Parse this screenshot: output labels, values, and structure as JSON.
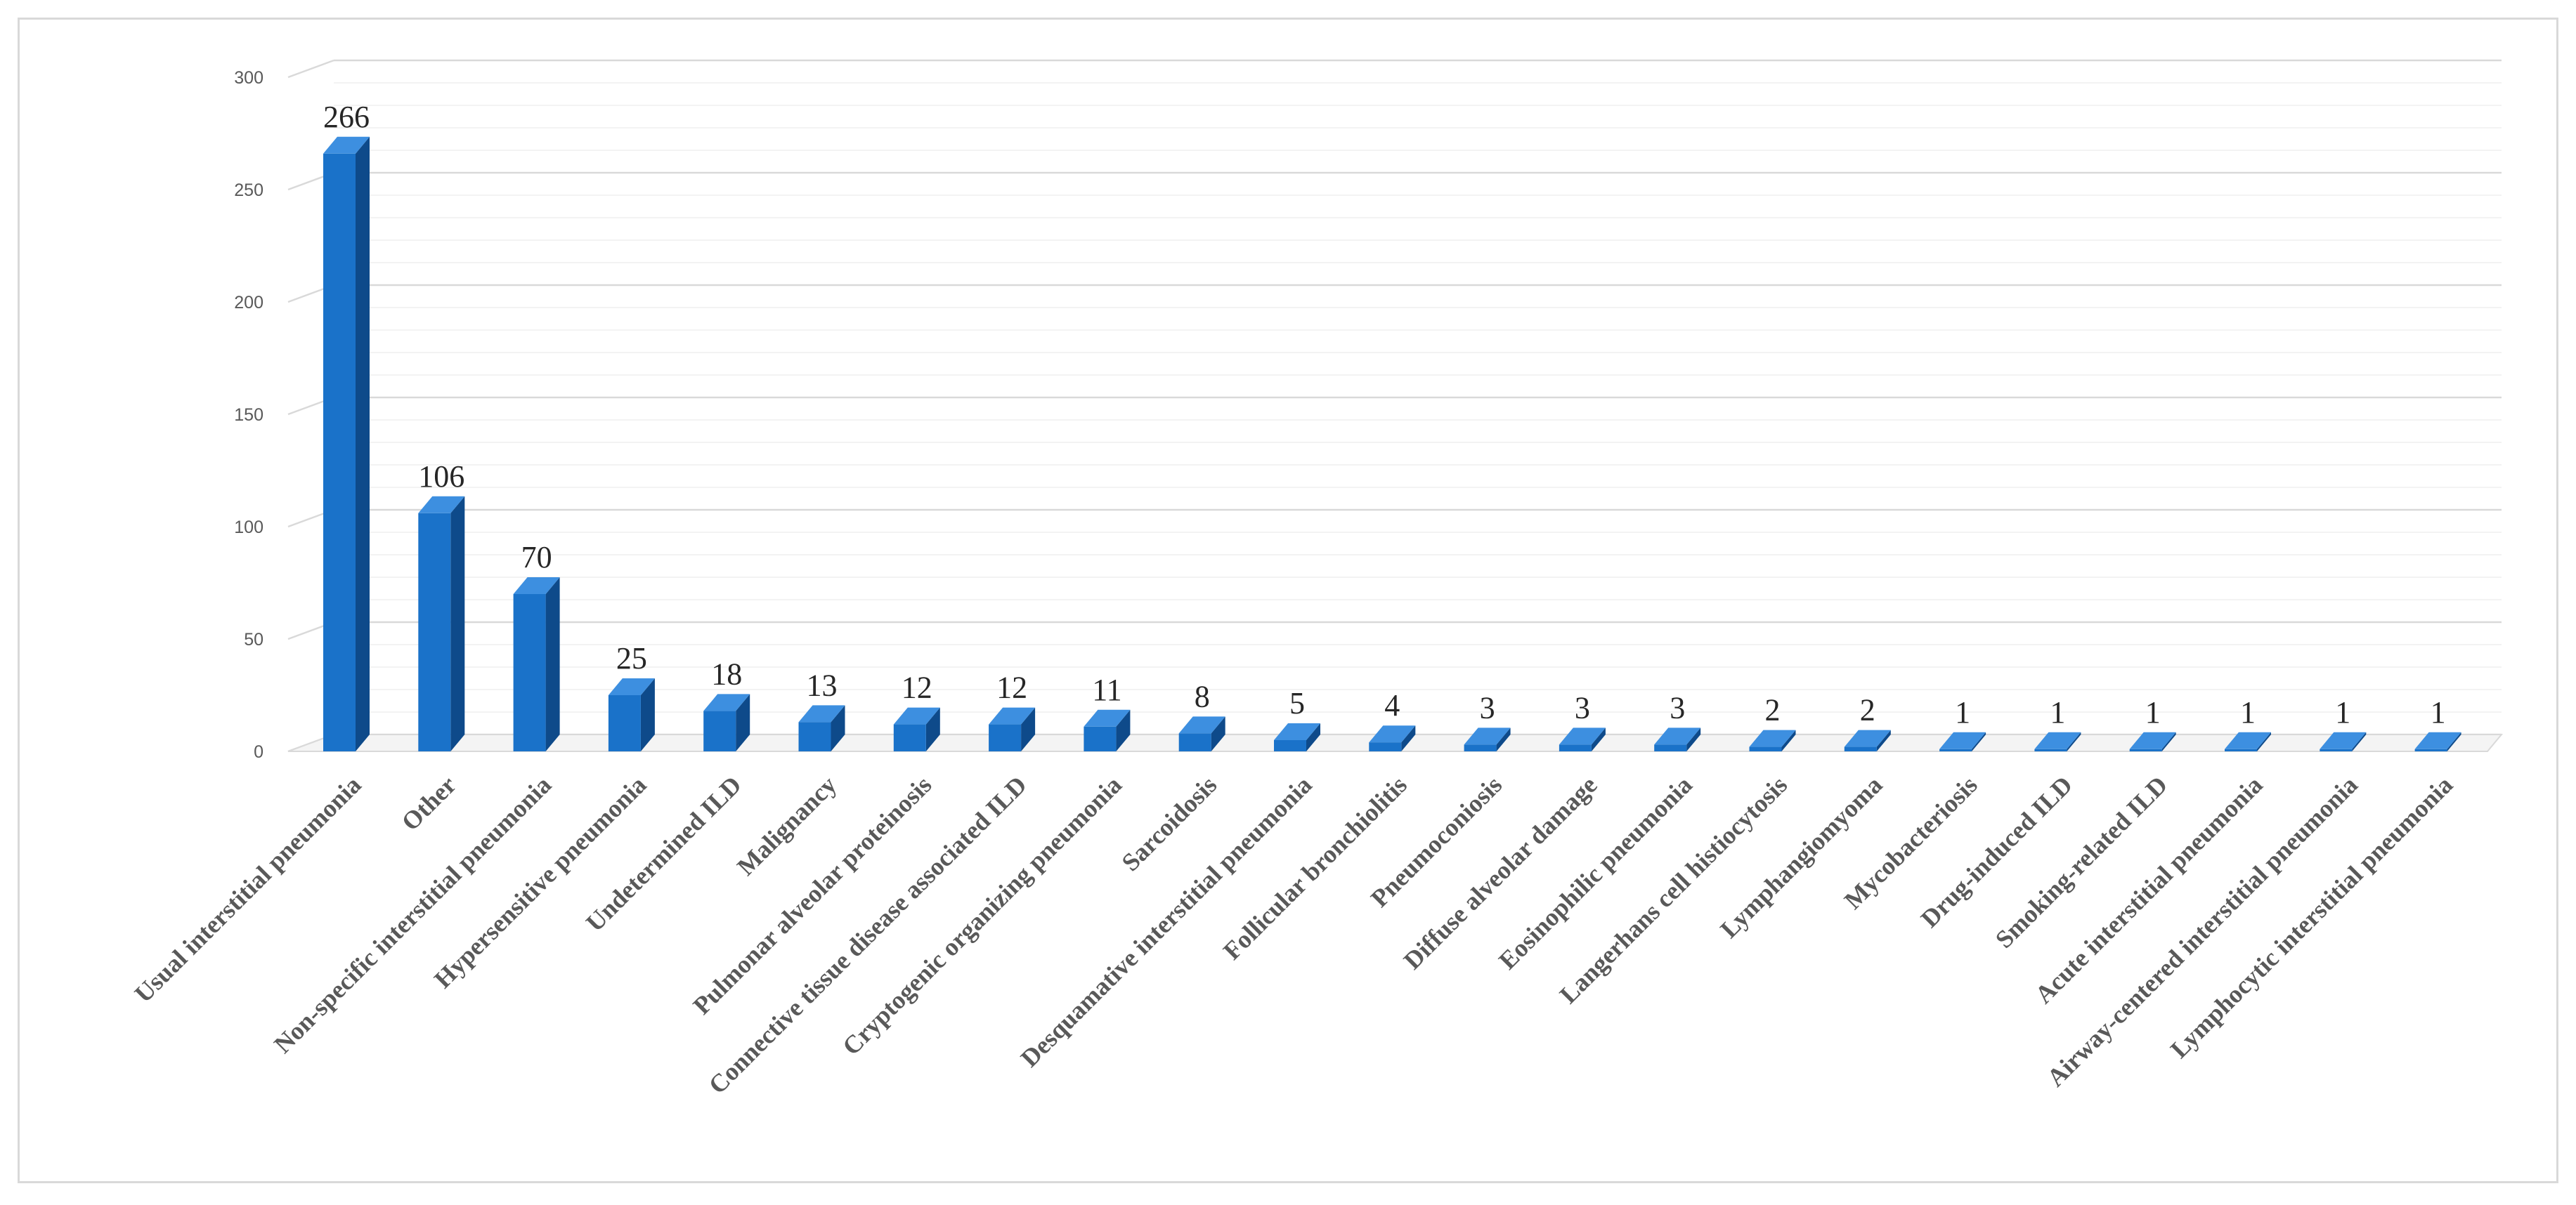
{
  "chart_data": {
    "type": "bar",
    "categories": [
      "Usual interstitial pneumonia",
      "Other",
      "Non-specific interstitial pneumonia",
      "Hypersensitive pneumonia",
      "Undetermined ILD",
      "Malignancy",
      "Pulmonar alveolar proteinosis",
      "Connective tissue disease associated ILD",
      "Cryptogenic organizing pneumonia",
      "Sarcoidosis",
      "Desquamative interstitial pneumonia",
      "Follicular bronchiolitis",
      "Pneumoconiosis",
      "Diffuse alveolar damage",
      "Eosinophilic pneumonia",
      "Langerhans cell histiocytosis",
      "Lymphangiomyoma",
      "Mycobacteriosis",
      "Drug-induced ILD",
      "Smoking-related ILD",
      "Acute interstitial pneumonia",
      "Airway-centered interstitial pneumonia",
      "Lymphocytic interstitial pneumonia"
    ],
    "values": [
      266,
      106,
      70,
      25,
      18,
      13,
      12,
      12,
      11,
      8,
      5,
      4,
      3,
      3,
      3,
      2,
      2,
      1,
      1,
      1,
      1,
      1,
      1
    ],
    "data_labels": [
      "266",
      "106",
      "70",
      "25",
      "18",
      "13",
      "12",
      "12",
      "11",
      "8",
      "5",
      "4",
      "3",
      "3",
      "3",
      "2",
      "2",
      "1",
      "1",
      "1",
      "1",
      "1",
      "1"
    ],
    "yticks": [
      "0",
      "50",
      "100",
      "150",
      "200",
      "250",
      "300"
    ],
    "ylim": [
      0,
      300
    ],
    "title": "",
    "xlabel": "",
    "ylabel": "",
    "grid": true,
    "bar_style": "3d",
    "colors": {
      "bar_front": "#1a72c9",
      "bar_side": "#0e4a8a",
      "bar_top": "#3d8fe0",
      "grid_major": "#d9d9d9",
      "grid_minor": "#efefef"
    }
  }
}
